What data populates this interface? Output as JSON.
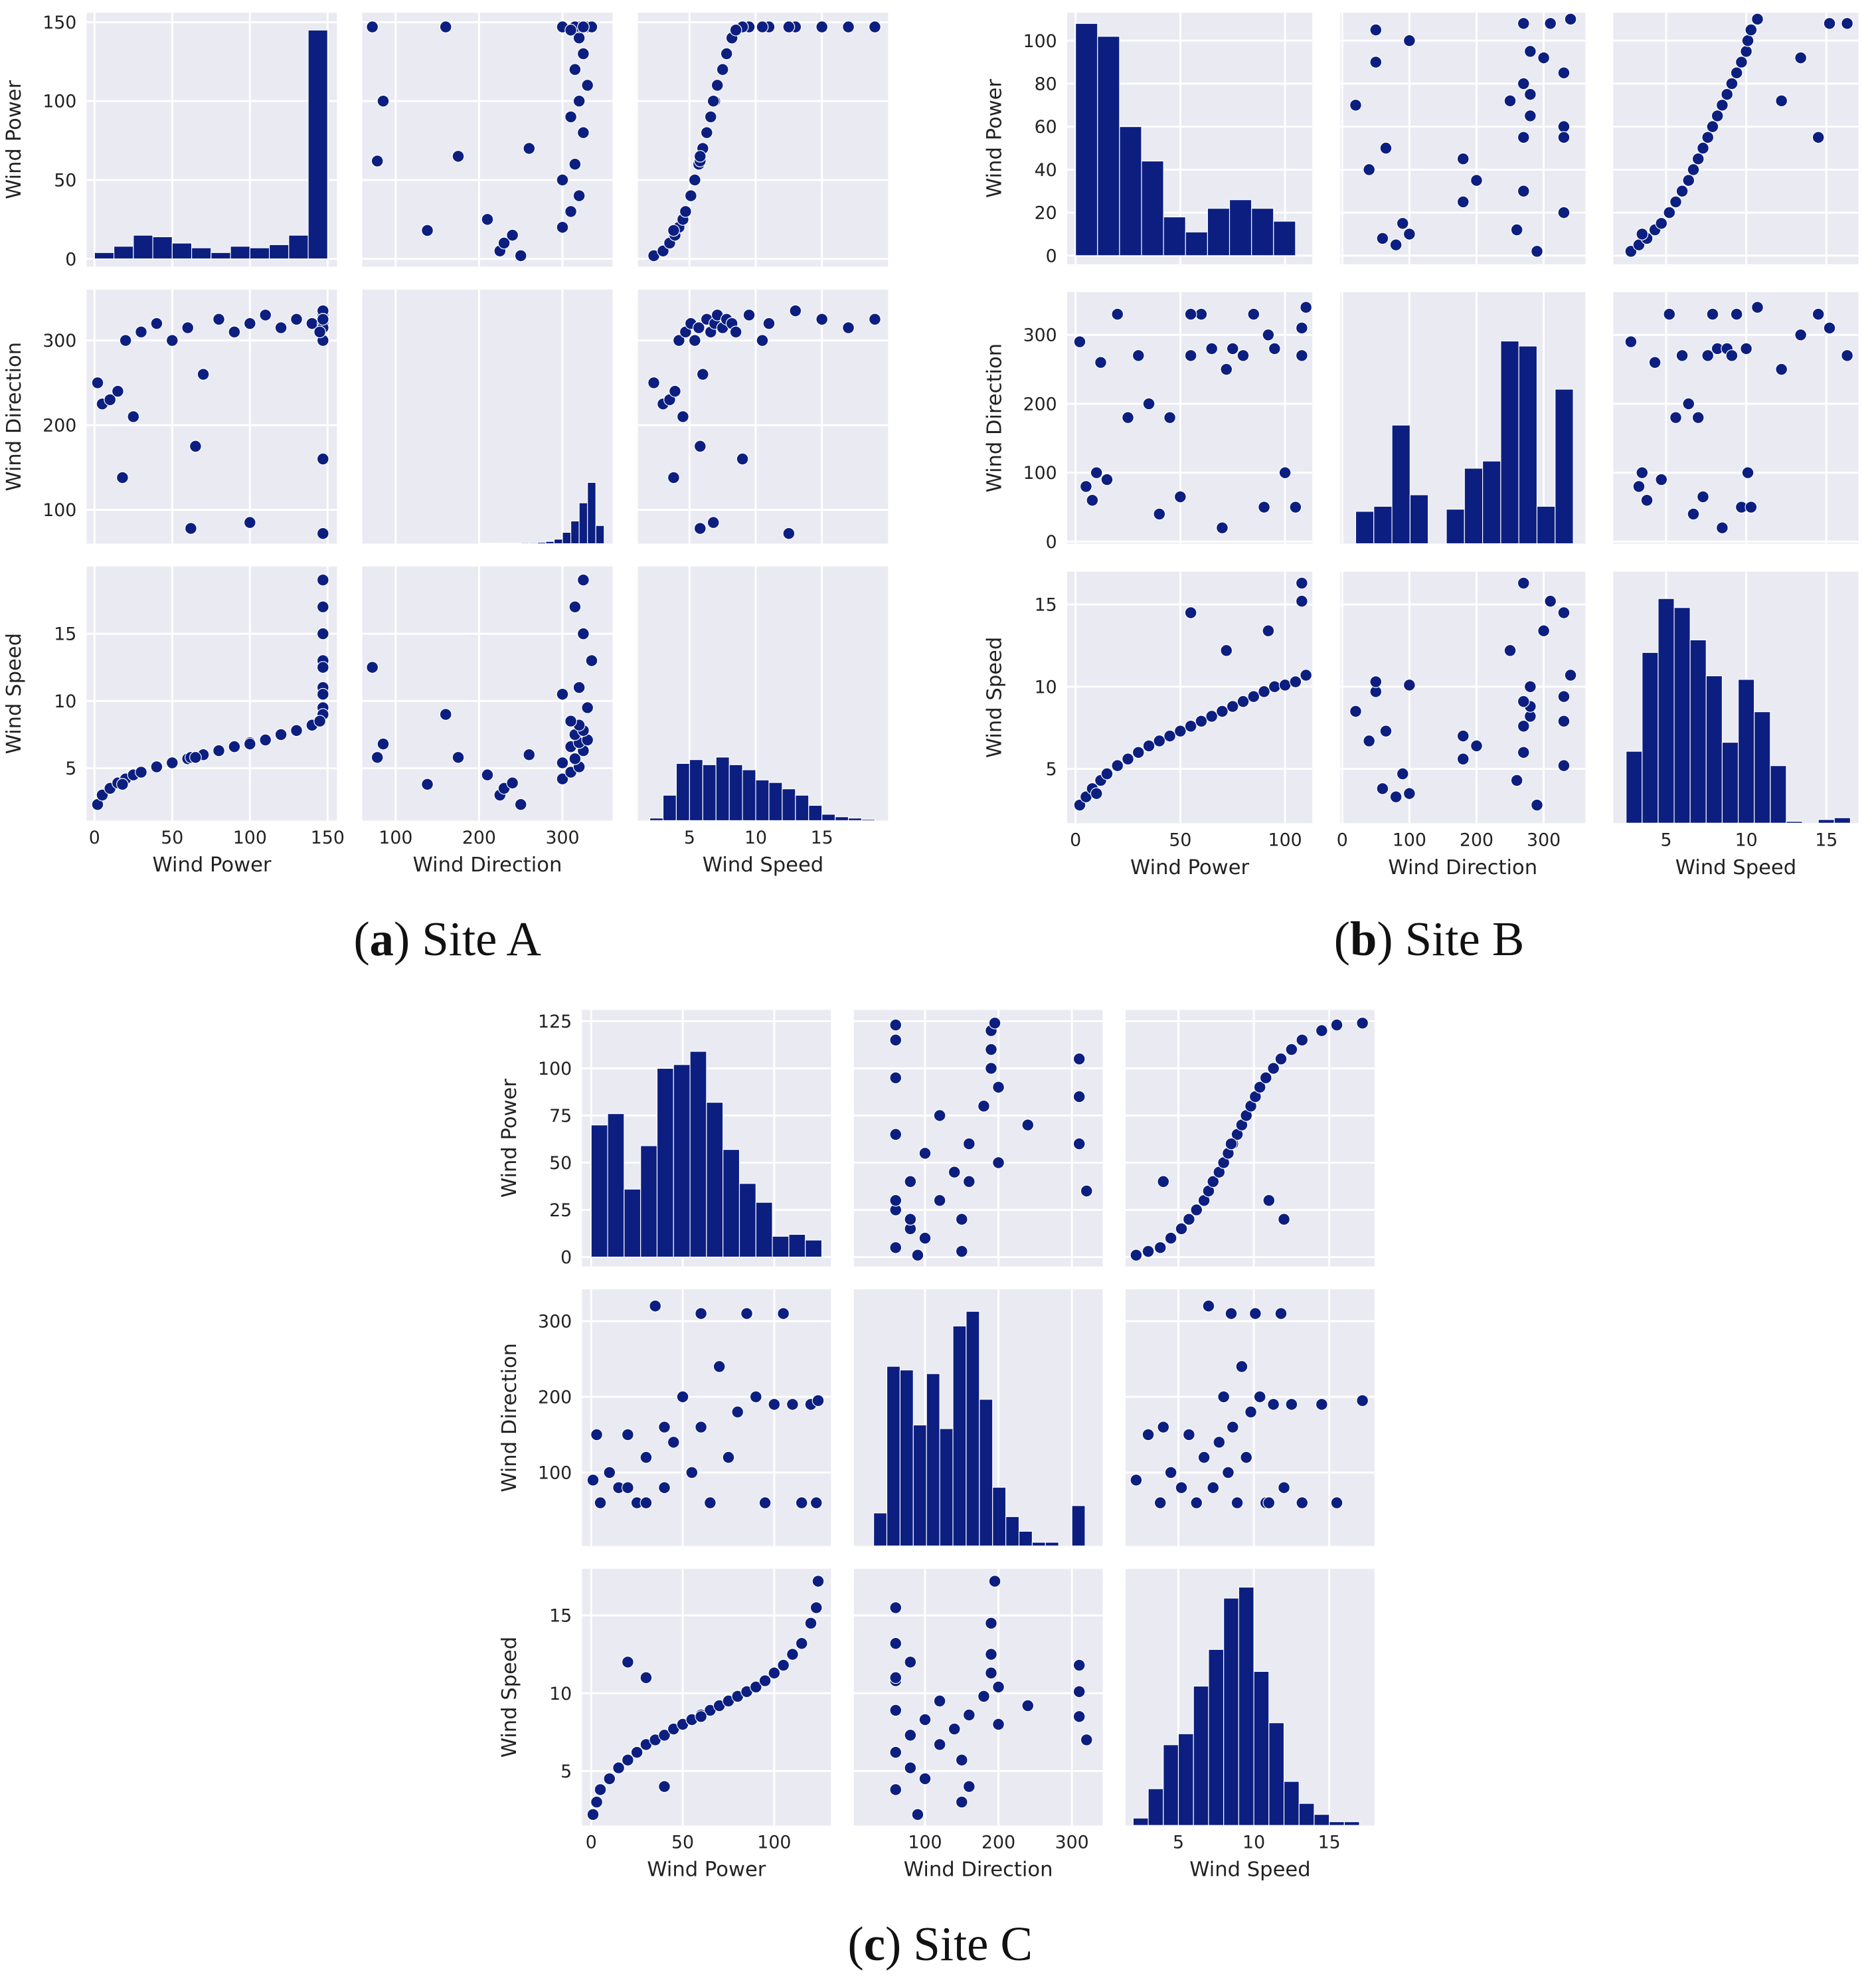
{
  "chart_data": [
    {
      "type": "pairplot",
      "caption": [
        "(",
        "a",
        ") Site A"
      ],
      "color": "#0c1f80",
      "variables": [
        "Wind Power",
        "Wind Direction",
        "Wind Speed"
      ],
      "lims": [
        [
          -5,
          156
        ],
        [
          60,
          360
        ],
        [
          1.1,
          20
        ]
      ],
      "xticks": [
        [
          0,
          50,
          100,
          150
        ],
        [
          100,
          200,
          300
        ],
        [
          5,
          10,
          15
        ]
      ],
      "yticks": [
        [
          0,
          50,
          100,
          150
        ],
        [
          100,
          200,
          300
        ],
        [
          5,
          10,
          15
        ]
      ],
      "data": [
        [
          2,
          5,
          10,
          15,
          20,
          25,
          30,
          40,
          50,
          60,
          70,
          80,
          90,
          100,
          110,
          120,
          130,
          140,
          147,
          147,
          147,
          147,
          147,
          147,
          62,
          100,
          147,
          147,
          18,
          65,
          147,
          145
        ],
        [
          250,
          225,
          230,
          240,
          300,
          210,
          310,
          320,
          300,
          315,
          260,
          325,
          310,
          320,
          330,
          315,
          325,
          320,
          330,
          320,
          335,
          325,
          315,
          325,
          78,
          85,
          72,
          160,
          138,
          175,
          300,
          310
        ],
        [
          2.3,
          3.0,
          3.5,
          3.9,
          4.2,
          4.5,
          4.7,
          5.1,
          5.4,
          5.7,
          6.0,
          6.3,
          6.6,
          6.9,
          7.1,
          7.5,
          7.8,
          8.2,
          9.5,
          11,
          13,
          15,
          17,
          19,
          5.8,
          6.8,
          12.5,
          9.0,
          3.8,
          5.8,
          10.5,
          8.5
        ]
      ],
      "hist": [
        {
          "bins": [
            0,
            12.5,
            25,
            37.5,
            50,
            62.5,
            75,
            87.5,
            100,
            112.5,
            125,
            137.5,
            150
          ],
          "counts": [
            4,
            8,
            15,
            14,
            10,
            7,
            4,
            8,
            7,
            9,
            15,
            145
          ],
          "ylim": [
            -5,
            156
          ]
        },
        {
          "bins": [
            200,
            210,
            220,
            230,
            240,
            250,
            260,
            270,
            280,
            290,
            300,
            310,
            320,
            330,
            340,
            350
          ],
          "counts": [
            1,
            1,
            1,
            1,
            1,
            2,
            2,
            3,
            5,
            10,
            25,
            50,
            90,
            135,
            40
          ],
          "ylim": [
            0,
            560
          ]
        },
        {
          "bins": [
            2,
            3,
            4,
            5,
            6,
            7,
            8,
            9,
            10,
            11,
            12,
            13,
            14,
            15,
            16,
            17,
            18,
            19
          ],
          "counts": [
            2,
            20,
            45,
            48,
            44,
            50,
            44,
            40,
            32,
            30,
            25,
            20,
            12,
            5,
            3,
            2,
            1
          ],
          "ylim": [
            0,
            200
          ]
        }
      ]
    },
    {
      "type": "pairplot",
      "caption": [
        "(",
        "b",
        ") Site B"
      ],
      "color": "#0c1f80",
      "variables": [
        "Wind Power",
        "Wind Direction",
        "Wind Speed"
      ],
      "lims": [
        [
          -4,
          113
        ],
        [
          -3,
          362
        ],
        [
          1.7,
          17
        ]
      ],
      "xticks": [
        [
          0,
          50,
          100
        ],
        [
          0,
          100,
          200,
          300
        ],
        [
          5,
          10,
          15
        ]
      ],
      "yticks": [
        [
          0,
          20,
          40,
          60,
          80,
          100
        ],
        [
          0,
          100,
          200,
          300
        ],
        [
          5,
          10,
          15
        ]
      ],
      "data": [
        [
          2,
          5,
          8,
          12,
          15,
          20,
          25,
          30,
          35,
          40,
          45,
          50,
          55,
          60,
          65,
          70,
          75,
          80,
          85,
          90,
          95,
          100,
          105,
          110,
          55,
          72,
          92,
          108,
          108,
          10
        ],
        [
          290,
          80,
          60,
          260,
          90,
          330,
          180,
          270,
          200,
          40,
          180,
          65,
          270,
          330,
          280,
          20,
          280,
          270,
          330,
          50,
          280,
          100,
          50,
          340,
          330,
          250,
          300,
          310,
          270,
          100
        ],
        [
          2.8,
          3.3,
          3.8,
          4.3,
          4.7,
          5.2,
          5.6,
          6.0,
          6.4,
          6.7,
          7.0,
          7.3,
          7.6,
          7.9,
          8.2,
          8.5,
          8.8,
          9.1,
          9.4,
          9.7,
          10.0,
          10.1,
          10.3,
          10.7,
          14.5,
          12.2,
          13.4,
          15.2,
          16.3,
          3.5
        ]
      ],
      "hist": [
        {
          "bins": [
            0,
            10.5,
            21,
            31.5,
            42,
            52.5,
            63,
            73.5,
            84,
            94.5,
            105
          ],
          "counts": [
            108,
            102,
            60,
            44,
            18,
            11,
            22,
            26,
            22,
            16
          ],
          "ylim": [
            -4,
            113
          ]
        },
        {
          "bins": [
            20,
            47,
            74,
            101,
            128,
            155,
            182,
            209,
            236,
            263,
            290,
            317,
            344
          ],
          "counts": [
            45,
            52,
            165,
            68,
            0,
            48,
            105,
            115,
            282,
            275,
            52,
            215
          ],
          "ylim": [
            0,
            350
          ]
        },
        {
          "bins": [
            2.5,
            3.5,
            4.5,
            5.5,
            6.5,
            7.5,
            8.5,
            9.5,
            10.5,
            11.5,
            12.5,
            13.5,
            14.5,
            15.5,
            16.5
          ],
          "counts": [
            4,
            9.5,
            12.5,
            12,
            10.2,
            8.2,
            4.5,
            8,
            6.2,
            3.2,
            0.1,
            0,
            0.2,
            0.3
          ],
          "ylim": [
            0,
            14
          ]
        }
      ]
    },
    {
      "type": "pairplot",
      "caption": [
        "(",
        "c",
        ") Site C"
      ],
      "color": "#0c1f80",
      "variables": [
        "Wind Power",
        "Wind Direction",
        "Wind Speed"
      ],
      "lims": [
        [
          -5,
          131
        ],
        [
          3,
          342
        ],
        [
          1.5,
          18
        ]
      ],
      "xticks": [
        [
          0,
          50,
          100
        ],
        [
          100,
          200,
          300
        ],
        [
          5,
          10,
          15
        ]
      ],
      "yticks": [
        [
          0,
          25,
          50,
          75,
          100,
          125
        ],
        [
          100,
          200,
          300
        ],
        [
          5,
          10,
          15
        ]
      ],
      "data": [
        [
          1,
          3,
          5,
          10,
          15,
          20,
          25,
          30,
          35,
          40,
          45,
          50,
          55,
          60,
          65,
          70,
          75,
          80,
          85,
          90,
          95,
          100,
          105,
          110,
          115,
          120,
          123,
          124,
          60,
          20,
          30,
          40
        ],
        [
          90,
          150,
          60,
          100,
          80,
          150,
          60,
          120,
          320,
          80,
          140,
          200,
          100,
          160,
          60,
          240,
          120,
          180,
          310,
          200,
          60,
          190,
          310,
          190,
          60,
          190,
          60,
          195,
          310,
          80,
          60,
          160
        ],
        [
          2.2,
          3.0,
          3.8,
          4.5,
          5.2,
          5.7,
          6.2,
          6.7,
          7.0,
          7.3,
          7.7,
          8.0,
          8.3,
          8.6,
          8.9,
          9.2,
          9.5,
          9.8,
          10.1,
          10.4,
          10.8,
          11.3,
          11.8,
          12.5,
          13.2,
          14.5,
          15.5,
          17.2,
          8.5,
          12,
          11,
          4
        ]
      ],
      "hist": [
        {
          "bins": [
            0,
            9,
            18,
            27,
            36,
            45,
            54,
            63,
            72,
            81,
            90,
            99,
            108,
            117,
            126
          ],
          "counts": [
            70,
            76,
            36,
            59,
            100,
            102,
            109,
            82,
            57,
            39,
            29,
            11,
            12,
            9
          ],
          "ylim": [
            -5,
            131
          ]
        },
        {
          "bins": [
            30,
            48,
            66,
            84,
            102,
            120,
            138,
            156,
            174,
            192,
            210,
            228,
            246,
            264,
            282,
            300,
            318
          ],
          "counts": [
            45,
            245,
            240,
            165,
            235,
            160,
            300,
            320,
            200,
            80,
            40,
            20,
            5,
            5,
            0,
            55
          ],
          "ylim": [
            0,
            350
          ]
        },
        {
          "bins": [
            2,
            3,
            4,
            5,
            6,
            7,
            8,
            9,
            10,
            11,
            12,
            13,
            14,
            15,
            16,
            17
          ],
          "counts": [
            2,
            10,
            22,
            25,
            38,
            48,
            62,
            65,
            42,
            28,
            12,
            6,
            3,
            1,
            1
          ],
          "ylim": [
            0,
            70
          ]
        }
      ]
    }
  ]
}
